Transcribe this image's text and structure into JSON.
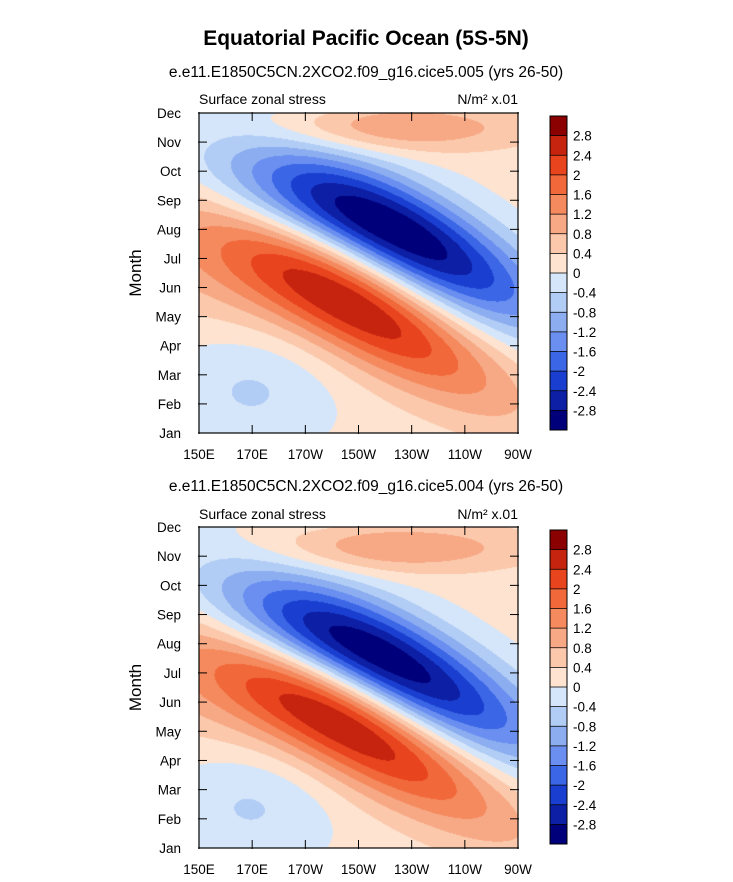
{
  "figure_title": "Equatorial Pacific Ocean (5S-5N)",
  "chart_data": [
    {
      "type": "heatmap",
      "title": "e.e11.E1850C5CN.2XCO2.f09_g16.cice5.005 (yrs 26-50)",
      "left_label": "Surface zonal stress",
      "units_label": "N/m² x.01",
      "xlabel": "",
      "ylabel": "Month",
      "x_ticks": [
        "150E",
        "170E",
        "170W",
        "150W",
        "130W",
        "110W",
        "90W"
      ],
      "y_ticks": [
        "Jan",
        "Feb",
        "Mar",
        "Apr",
        "May",
        "Jun",
        "Jul",
        "Aug",
        "Sep",
        "Oct",
        "Nov",
        "Dec"
      ],
      "features": [
        {
          "kind": "min",
          "lon": 232,
          "month": 6.5,
          "value": -3.0,
          "sx": 36,
          "sy": 1.3,
          "tilt": -0.045,
          "tailLon": 100,
          "tailMonth": 9.3,
          "tailValue": -1.2,
          "tailSx": 20,
          "tailSy": 1.2
        },
        {
          "kind": "max",
          "lon": 212,
          "month": 4.2,
          "value": 2.2,
          "sx": 38,
          "sy": 1.3,
          "tilt": -0.05,
          "tailLon": 200,
          "tailMonth": 5.5,
          "tailValue": 0.9,
          "tailSx": 28,
          "tailSy": 1.5
        },
        {
          "kind": "max",
          "lon": 225,
          "month": 10.5,
          "value": 1.0,
          "sx": 35,
          "sy": 0.6
        },
        {
          "kind": "min",
          "lon": 170,
          "month": 1.5,
          "value": -0.6,
          "sx": 22,
          "sy": 1.5
        },
        {
          "kind": "min",
          "lon": 190,
          "month": 11.7,
          "value": -0.6,
          "sx": 16,
          "sy": 0.4
        }
      ]
    },
    {
      "type": "heatmap",
      "title": "e.e11.E1850C5CN.2XCO2.f09_g16.cice5.004 (yrs 26-50)",
      "left_label": "Surface zonal stress",
      "units_label": "N/m² x.01",
      "xlabel": "",
      "ylabel": "Month",
      "x_ticks": [
        "150E",
        "170E",
        "170W",
        "150W",
        "130W",
        "110W",
        "90W"
      ],
      "y_ticks": [
        "Jan",
        "Feb",
        "Mar",
        "Apr",
        "May",
        "Jun",
        "Jul",
        "Aug",
        "Sep",
        "Oct",
        "Nov",
        "Dec"
      ],
      "features": [
        {
          "kind": "min",
          "lon": 228,
          "month": 6.0,
          "value": -3.0,
          "sx": 38,
          "sy": 1.3,
          "tilt": -0.045,
          "tailLon": 100,
          "tailMonth": 9.3,
          "tailValue": -1.2,
          "tailSx": 20,
          "tailSy": 1.2
        },
        {
          "kind": "max",
          "lon": 210,
          "month": 4.0,
          "value": 2.3,
          "sx": 40,
          "sy": 1.3,
          "tilt": -0.05,
          "tailLon": 200,
          "tailMonth": 5.5,
          "tailValue": 0.9,
          "tailSx": 28,
          "tailSy": 1.5
        },
        {
          "kind": "max",
          "lon": 225,
          "month": 10.3,
          "value": 1.0,
          "sx": 35,
          "sy": 0.6
        },
        {
          "kind": "min",
          "lon": 170,
          "month": 1.5,
          "value": -0.6,
          "sx": 22,
          "sy": 1.5
        },
        {
          "kind": "min",
          "lon": 190,
          "month": 11.7,
          "value": -0.6,
          "sx": 16,
          "sy": 0.4
        }
      ]
    }
  ],
  "x_range_lon": [
    150,
    270
  ],
  "y_range_month": [
    0,
    11
  ],
  "colorbar": {
    "labels": [
      "2.8",
      "2.4",
      "2",
      "1.6",
      "1.2",
      "0.8",
      "0.4",
      "0",
      "-0.4",
      "-0.8",
      "-1.2",
      "-1.6",
      "-2",
      "-2.4",
      "-2.8"
    ],
    "levels": [
      2.8,
      2.4,
      2.0,
      1.6,
      1.2,
      0.8,
      0.4,
      0.0,
      -0.4,
      -0.8,
      -1.2,
      -1.6,
      -2.0,
      -2.4,
      -2.8
    ],
    "colors": [
      "#8b0000",
      "#c6240f",
      "#e8441e",
      "#f1693b",
      "#f58a5f",
      "#f7a986",
      "#fbc8ab",
      "#fde3d0",
      "#d6e6fa",
      "#b2cdf5",
      "#8caef0",
      "#6a8ff0",
      "#3b66e6",
      "#1a3fd0",
      "#0d1fa4",
      "#00007a"
    ]
  }
}
